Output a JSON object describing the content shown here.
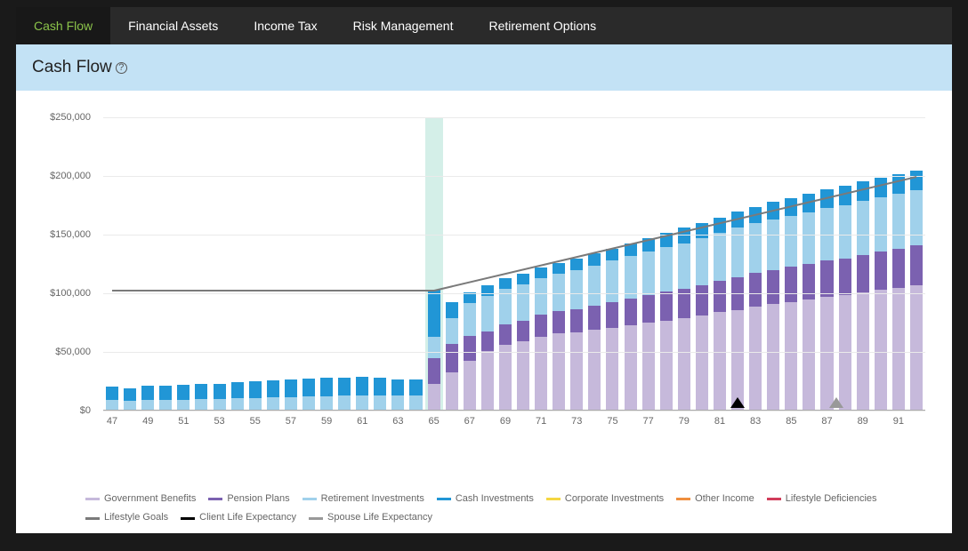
{
  "tabs": [
    {
      "label": "Cash Flow",
      "active": true
    },
    {
      "label": "Financial Assets",
      "active": false
    },
    {
      "label": "Income Tax",
      "active": false
    },
    {
      "label": "Risk Management",
      "active": false
    },
    {
      "label": "Retirement Options",
      "active": false
    }
  ],
  "header": {
    "title": "Cash Flow",
    "help": "?"
  },
  "chart": {
    "type": "stacked-bar",
    "background_color": "#ffffff",
    "grid_color": "#eaeaea",
    "highlight_band": {
      "age": 65,
      "color": "#d4efe8"
    },
    "y": {
      "min": 0,
      "max": 250000,
      "step": 50000,
      "ticks": [
        "$0",
        "$50,000",
        "$100,000",
        "$150,000",
        "$200,000",
        "$250,000"
      ],
      "label_fontsize": 11,
      "label_color": "#666666"
    },
    "x": {
      "min": 47,
      "max": 92,
      "tick_step": 2,
      "label_fontsize": 11,
      "label_color": "#666666"
    },
    "bar_width_ratio": 0.7,
    "series_order": [
      "gov",
      "pension",
      "retire",
      "cash",
      "corp",
      "other",
      "defi"
    ],
    "series": {
      "gov": {
        "label": "Government Benefits",
        "color": "#c6b9db"
      },
      "pension": {
        "label": "Pension Plans",
        "color": "#7b61b0"
      },
      "retire": {
        "label": "Retirement Investments",
        "color": "#a0d1eb"
      },
      "cash": {
        "label": "Cash Investments",
        "color": "#2196d6"
      },
      "corp": {
        "label": "Corporate Investments",
        "color": "#f5d742"
      },
      "other": {
        "label": "Other Income",
        "color": "#ef8e3e"
      },
      "defi": {
        "label": "Lifestyle Deficiencies",
        "color": "#d13c5a"
      }
    },
    "other_legend": {
      "goals": {
        "label": "Lifestyle Goals",
        "color": "#7a7a7a"
      },
      "client": {
        "label": "Client Life Expectancy",
        "color": "#000000"
      },
      "spouse": {
        "label": "Spouse Life Expectancy",
        "color": "#999999"
      }
    },
    "lifestyle_goal_line": {
      "color": "#7a7a7a",
      "width": 2,
      "points": [
        {
          "age": 47,
          "value": 103000
        },
        {
          "age": 65,
          "value": 103000
        },
        {
          "age": 92,
          "value": 200000
        }
      ]
    },
    "markers": {
      "client_life_expectancy": {
        "age": 82,
        "color": "#000000"
      },
      "spouse_life_expectancy": {
        "age": 87.5,
        "color": "#999999"
      }
    },
    "data": [
      {
        "age": 47,
        "gov": 0,
        "pension": 0,
        "retire": 8000,
        "cash": 12000,
        "corp": 0,
        "other": 0,
        "defi": 0
      },
      {
        "age": 48,
        "gov": 0,
        "pension": 0,
        "retire": 7500,
        "cash": 11000,
        "corp": 0,
        "other": 0,
        "defi": 0
      },
      {
        "age": 49,
        "gov": 0,
        "pension": 0,
        "retire": 8200,
        "cash": 12200,
        "corp": 0,
        "other": 0,
        "defi": 0
      },
      {
        "age": 50,
        "gov": 0,
        "pension": 0,
        "retire": 8300,
        "cash": 12400,
        "corp": 0,
        "other": 0,
        "defi": 0
      },
      {
        "age": 51,
        "gov": 0,
        "pension": 0,
        "retire": 8600,
        "cash": 12800,
        "corp": 0,
        "other": 0,
        "defi": 0
      },
      {
        "age": 52,
        "gov": 0,
        "pension": 0,
        "retire": 8800,
        "cash": 13000,
        "corp": 0,
        "other": 0,
        "defi": 0
      },
      {
        "age": 53,
        "gov": 0,
        "pension": 0,
        "retire": 9200,
        "cash": 13000,
        "corp": 0,
        "other": 0,
        "defi": 0
      },
      {
        "age": 54,
        "gov": 0,
        "pension": 0,
        "retire": 9600,
        "cash": 13900,
        "corp": 0,
        "other": 0,
        "defi": 0
      },
      {
        "age": 55,
        "gov": 0,
        "pension": 0,
        "retire": 10200,
        "cash": 14200,
        "corp": 0,
        "other": 0,
        "defi": 0
      },
      {
        "age": 56,
        "gov": 0,
        "pension": 0,
        "retire": 10500,
        "cash": 14500,
        "corp": 0,
        "other": 0,
        "defi": 0
      },
      {
        "age": 57,
        "gov": 0,
        "pension": 0,
        "retire": 10800,
        "cash": 14800,
        "corp": 0,
        "other": 0,
        "defi": 0
      },
      {
        "age": 58,
        "gov": 0,
        "pension": 0,
        "retire": 11200,
        "cash": 15200,
        "corp": 0,
        "other": 0,
        "defi": 0
      },
      {
        "age": 59,
        "gov": 0,
        "pension": 0,
        "retire": 11600,
        "cash": 15600,
        "corp": 0,
        "other": 0,
        "defi": 0
      },
      {
        "age": 60,
        "gov": 0,
        "pension": 0,
        "retire": 12000,
        "cash": 15400,
        "corp": 0,
        "other": 0,
        "defi": 0
      },
      {
        "age": 61,
        "gov": 0,
        "pension": 0,
        "retire": 12400,
        "cash": 15800,
        "corp": 0,
        "other": 0,
        "defi": 0
      },
      {
        "age": 62,
        "gov": 0,
        "pension": 0,
        "retire": 12000,
        "cash": 15000,
        "corp": 0,
        "other": 0,
        "defi": 0
      },
      {
        "age": 63,
        "gov": 0,
        "pension": 0,
        "retire": 12000,
        "cash": 14000,
        "corp": 0,
        "other": 0,
        "defi": 0
      },
      {
        "age": 64,
        "gov": 0,
        "pension": 0,
        "retire": 12000,
        "cash": 14000,
        "corp": 0,
        "other": 0,
        "defi": 0
      },
      {
        "age": 65,
        "gov": 22000,
        "pension": 22000,
        "retire": 18000,
        "cash": 40000,
        "corp": 0,
        "other": 0,
        "defi": 0
      },
      {
        "age": 66,
        "gov": 32000,
        "pension": 24000,
        "retire": 22000,
        "cash": 14000,
        "corp": 0,
        "other": 0,
        "defi": 0
      },
      {
        "age": 67,
        "gov": 42000,
        "pension": 21000,
        "retire": 28000,
        "cash": 9000,
        "corp": 0,
        "other": 0,
        "defi": 0
      },
      {
        "age": 68,
        "gov": 50000,
        "pension": 17000,
        "retire": 30000,
        "cash": 9000,
        "corp": 0,
        "other": 0,
        "defi": 0
      },
      {
        "age": 69,
        "gov": 55000,
        "pension": 18000,
        "retire": 30000,
        "cash": 9000,
        "corp": 0,
        "other": 0,
        "defi": 0
      },
      {
        "age": 70,
        "gov": 58000,
        "pension": 18000,
        "retire": 31000,
        "cash": 9000,
        "corp": 0,
        "other": 0,
        "defi": 0
      },
      {
        "age": 71,
        "gov": 62000,
        "pension": 19000,
        "retire": 31000,
        "cash": 9000,
        "corp": 0,
        "other": 0,
        "defi": 0
      },
      {
        "age": 72,
        "gov": 65000,
        "pension": 19000,
        "retire": 32000,
        "cash": 9000,
        "corp": 0,
        "other": 0,
        "defi": 0
      },
      {
        "age": 73,
        "gov": 66000,
        "pension": 20000,
        "retire": 33000,
        "cash": 10000,
        "corp": 0,
        "other": 0,
        "defi": 0
      },
      {
        "age": 74,
        "gov": 68000,
        "pension": 21000,
        "retire": 34000,
        "cash": 10000,
        "corp": 0,
        "other": 0,
        "defi": 0
      },
      {
        "age": 75,
        "gov": 70000,
        "pension": 22000,
        "retire": 35000,
        "cash": 10000,
        "corp": 0,
        "other": 0,
        "defi": 0
      },
      {
        "age": 76,
        "gov": 72000,
        "pension": 23000,
        "retire": 36000,
        "cash": 11000,
        "corp": 0,
        "other": 0,
        "defi": 0
      },
      {
        "age": 77,
        "gov": 74000,
        "pension": 24000,
        "retire": 37000,
        "cash": 11000,
        "corp": 0,
        "other": 0,
        "defi": 0
      },
      {
        "age": 78,
        "gov": 76000,
        "pension": 25000,
        "retire": 38000,
        "cash": 12000,
        "corp": 0,
        "other": 0,
        "defi": 0
      },
      {
        "age": 79,
        "gov": 78000,
        "pension": 25000,
        "retire": 39000,
        "cash": 13000,
        "corp": 0,
        "other": 0,
        "defi": 0
      },
      {
        "age": 80,
        "gov": 80000,
        "pension": 26000,
        "retire": 40000,
        "cash": 13000,
        "corp": 0,
        "other": 0,
        "defi": 0
      },
      {
        "age": 81,
        "gov": 83000,
        "pension": 27000,
        "retire": 41000,
        "cash": 13000,
        "corp": 0,
        "other": 0,
        "defi": 0
      },
      {
        "age": 82,
        "gov": 85000,
        "pension": 28000,
        "retire": 42000,
        "cash": 14000,
        "corp": 0,
        "other": 0,
        "defi": 0
      },
      {
        "age": 83,
        "gov": 88000,
        "pension": 29000,
        "retire": 42000,
        "cash": 14000,
        "corp": 0,
        "other": 0,
        "defi": 0
      },
      {
        "age": 84,
        "gov": 90000,
        "pension": 29000,
        "retire": 43000,
        "cash": 15000,
        "corp": 0,
        "other": 0,
        "defi": 0
      },
      {
        "age": 85,
        "gov": 92000,
        "pension": 30000,
        "retire": 43000,
        "cash": 15000,
        "corp": 0,
        "other": 0,
        "defi": 0
      },
      {
        "age": 86,
        "gov": 94000,
        "pension": 30000,
        "retire": 44000,
        "cash": 16000,
        "corp": 0,
        "other": 0,
        "defi": 0
      },
      {
        "age": 87,
        "gov": 96000,
        "pension": 31000,
        "retire": 45000,
        "cash": 16000,
        "corp": 0,
        "other": 0,
        "defi": 0
      },
      {
        "age": 88,
        "gov": 98000,
        "pension": 31000,
        "retire": 45000,
        "cash": 17000,
        "corp": 0,
        "other": 0,
        "defi": 0
      },
      {
        "age": 89,
        "gov": 100000,
        "pension": 32000,
        "retire": 46000,
        "cash": 17000,
        "corp": 0,
        "other": 0,
        "defi": 0
      },
      {
        "age": 90,
        "gov": 102000,
        "pension": 33000,
        "retire": 46000,
        "cash": 17000,
        "corp": 0,
        "other": 0,
        "defi": 0
      },
      {
        "age": 91,
        "gov": 104000,
        "pension": 33000,
        "retire": 47000,
        "cash": 17000,
        "corp": 0,
        "other": 0,
        "defi": 0
      },
      {
        "age": 92,
        "gov": 106000,
        "pension": 34000,
        "retire": 47000,
        "cash": 17000,
        "corp": 0,
        "other": 0,
        "defi": 0
      }
    ]
  }
}
